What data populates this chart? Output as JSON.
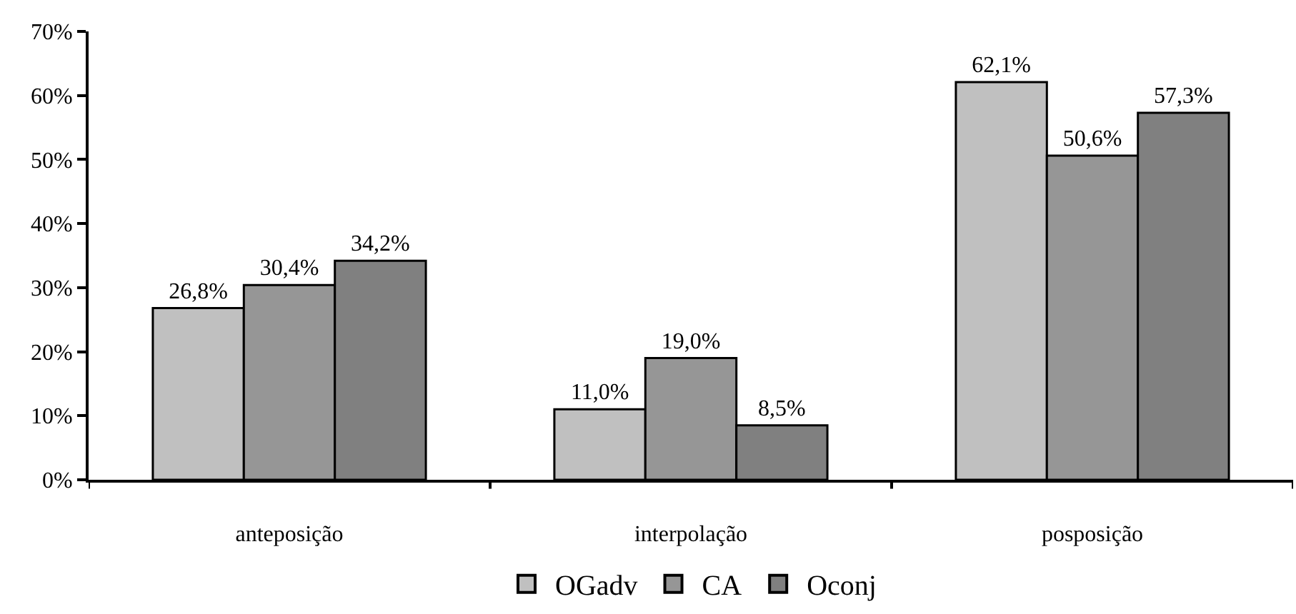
{
  "chart_data": {
    "type": "bar",
    "categories": [
      "anteposição",
      "interpolação",
      "posposição"
    ],
    "series": [
      {
        "name": "OGadv",
        "color": "#c0c0c0",
        "values": [
          26.8,
          11.0,
          62.1
        ],
        "value_labels": [
          "26,8%",
          "11,0%",
          "62,1%"
        ]
      },
      {
        "name": "CA",
        "color": "#969696",
        "values": [
          30.4,
          19.0,
          50.6
        ],
        "value_labels": [
          "30,4%",
          "19,0%",
          "50,6%"
        ]
      },
      {
        "name": "Oconj",
        "color": "#808080",
        "values": [
          34.2,
          8.5,
          57.3
        ],
        "value_labels": [
          "34,2%",
          "8,5%",
          "57,3%"
        ]
      }
    ],
    "ylim": [
      0,
      70
    ],
    "yticks": [
      {
        "value": 0,
        "label": "0%"
      },
      {
        "value": 10,
        "label": "10%"
      },
      {
        "value": 20,
        "label": "20%"
      },
      {
        "value": 30,
        "label": "30%"
      },
      {
        "value": 40,
        "label": "40%"
      },
      {
        "value": 50,
        "label": "50%"
      },
      {
        "value": 60,
        "label": "60%"
      },
      {
        "value": 70,
        "label": "70%"
      }
    ],
    "grid": false,
    "legend": "bottom"
  }
}
